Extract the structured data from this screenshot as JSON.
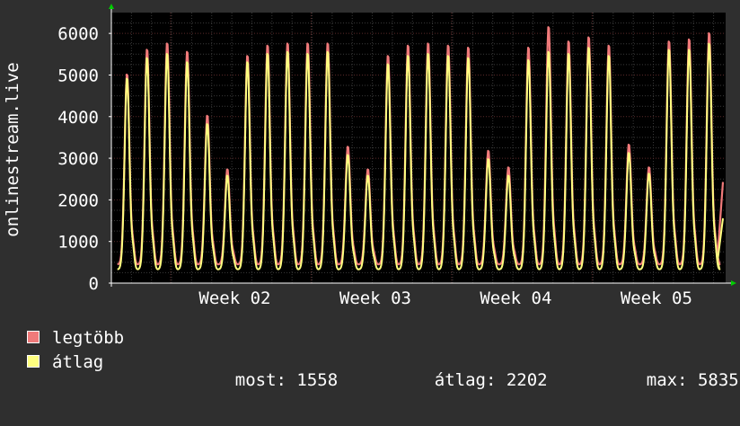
{
  "colors": {
    "background": "#2f2f2f",
    "plot_background": "#000000",
    "grid_minor": "#3a3a3a",
    "grid_major": "#5a2a2a",
    "axis": "#ffffff",
    "arrow": "#00cc00",
    "max_series": "#f07a7a",
    "avg_series": "#ffff80"
  },
  "legend": {
    "max_label": "legtöbb",
    "avg_label": "átlag"
  },
  "stats": {
    "now_label": "most:",
    "now_value": "1558",
    "avg_label": "átlag:",
    "avg_value": "2202",
    "max_label": "max:",
    "max_value": "5835"
  },
  "chart_data": {
    "type": "area",
    "ylabel": "onlinestream.live",
    "ylim": [
      0,
      6500
    ],
    "yticks": [
      0,
      1000,
      2000,
      3000,
      4000,
      5000,
      6000
    ],
    "xticks": [
      "Week 02",
      "Week 03",
      "Week 04",
      "Week 05"
    ],
    "grid": true,
    "series": [
      {
        "name": "legtöbb",
        "color": "#f07a7a",
        "daily_peaks": [
          5050,
          5650,
          5800,
          5600,
          4050,
          2750,
          5500,
          5750,
          5800,
          5800,
          5800,
          3300,
          2750,
          5500,
          5750,
          5800,
          5750,
          5700,
          3200,
          2800,
          5700,
          6200,
          5850,
          5950,
          5750,
          3350,
          2800,
          5850,
          5900,
          6050
        ],
        "trough": 450,
        "last": 2430
      },
      {
        "name": "átlag",
        "color": "#ffff80",
        "daily_peaks": [
          4950,
          5450,
          5550,
          5350,
          3850,
          2600,
          5350,
          5550,
          5600,
          5550,
          5600,
          3100,
          2600,
          5300,
          5500,
          5550,
          5500,
          5450,
          3000,
          2600,
          5400,
          5600,
          5550,
          5700,
          5500,
          3150,
          2650,
          5650,
          5650,
          5800
        ],
        "trough": 330,
        "last": 1558
      }
    ]
  }
}
